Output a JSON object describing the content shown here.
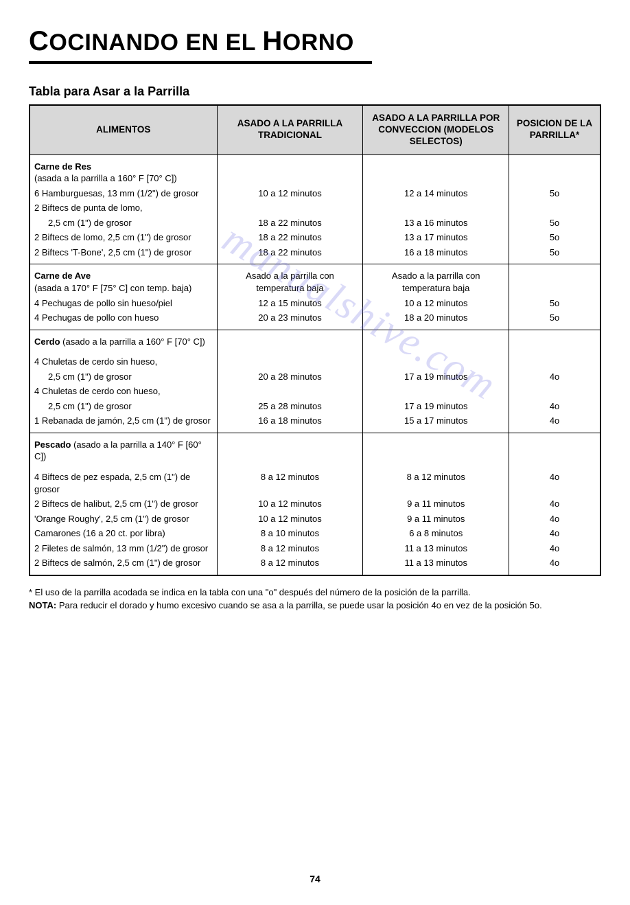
{
  "title": {
    "part1": "C",
    "part2": "OCINANDO EN EL ",
    "part3": "H",
    "part4": "ORNO"
  },
  "subtitle": "Tabla para Asar a la Parrilla",
  "columns": {
    "c1": "ALIMENTOS",
    "c2": "ASADO A LA PARRILLA TRADICIONAL",
    "c3": "ASADO A LA PARRILLA POR CONVECCION (MODELOS SELECTOS)",
    "c4": "POSICION DE LA PARRILLA*"
  },
  "sections": [
    {
      "header": "Carne de Res",
      "subheader": "(asada a la parrilla a 160° F [70° C])",
      "header_c2": "",
      "header_c3": "",
      "rows": [
        {
          "food": "6 Hamburguesas, 13 mm (1/2\")  de grosor",
          "c2": "10 a 12 minutos",
          "c3": "12 a 14 minutos",
          "c4": "5o"
        },
        {
          "food": "2 Biftecs de punta de lomo,",
          "cont": "2,5 cm (1\") de grosor",
          "c2": "18 a 22 minutos",
          "c3": "13 a 16 minutos",
          "c4": "5o"
        },
        {
          "food": "2 Biftecs de lomo, 2,5 cm (1\") de grosor",
          "c2": "18 a 22 minutos",
          "c3": "13 a 17 minutos",
          "c4": "5o"
        },
        {
          "food": "2 Biftecs 'T-Bone', 2,5 cm (1\") de grosor",
          "c2": "18 a 22 minutos",
          "c3": "16 a 18 minutos",
          "c4": "5o"
        }
      ]
    },
    {
      "header": "Carne de Ave",
      "subheader": "(asada a 170° F [75° C] con temp. baja)",
      "header_c2": "Asado a la parrilla con temperatura baja",
      "header_c3": "Asado a la parrilla con temperatura baja",
      "rows": [
        {
          "food": "4 Pechugas de pollo sin hueso/piel",
          "c2": "12 a 15 minutos",
          "c3": "10 a 12 minutos",
          "c4": "5o"
        },
        {
          "food": "4 Pechugas de pollo con hueso",
          "c2": "20 a 23 minutos",
          "c3": "18 a 20 minutos",
          "c4": "5o"
        }
      ]
    },
    {
      "header_inline": "Cerdo",
      "subheader_inline": " (asado a la parrilla a 160° F [70° C])",
      "rows": [
        {
          "food": "4 Chuletas de cerdo sin hueso,",
          "cont": "2,5 cm (1\") de grosor",
          "c2": "20 a 28 minutos",
          "c3": "17 a 19 minutos",
          "c4": "4o"
        },
        {
          "food": "4 Chuletas de cerdo con hueso,",
          "cont": "2,5 cm (1\") de grosor",
          "c2": "25 a 28 minutos",
          "c3": "17 a 19 minutos",
          "c4": "4o"
        },
        {
          "food": "1 Rebanada de jamón, 2,5 cm (1\") de grosor",
          "c2": "16 a 18 minutos",
          "c3": "15 a 17 minutos",
          "c4": "4o"
        }
      ]
    },
    {
      "header_inline": "Pescado",
      "subheader_inline": " (asado a la parrilla a 140° F [60° C])",
      "rows": [
        {
          "food": "4 Biftecs de pez espada, 2,5 cm (1\") de grosor",
          "c2": "8 a 12 minutos",
          "c3": "8 a 12 minutos",
          "c4": "4o"
        },
        {
          "food": "2 Biftecs de halibut, 2,5 cm (1\") de grosor",
          "c2": "10 a 12 minutos",
          "c3": "9 a 11 minutos",
          "c4": "4o"
        },
        {
          "food": "'Orange Roughy', 2,5 cm (1\") de grosor",
          "c2": "10 a 12 minutos",
          "c3": "9 a 11 minutos",
          "c4": "4o"
        },
        {
          "food": "Camarones (16 a 20 ct. por libra)",
          "c2": "8 a 10 minutos",
          "c3": "6 a 8 minutos",
          "c4": "4o"
        },
        {
          "food": "2 Filetes de salmón, 13 mm (1/2\") de grosor",
          "c2": "8 a 12 minutos",
          "c3": "11 a 13 minutos",
          "c4": "4o"
        },
        {
          "food": "2 Biftecs de salmón, 2,5 cm (1\") de grosor",
          "c2": "8 a 12 minutos",
          "c3": "11 a 13 minutos",
          "c4": "4o"
        }
      ]
    }
  ],
  "footnote1": "* El uso de la parrilla acodada se indica en la tabla con una \"o\" después del número de la posición de la parrilla.",
  "footnote2_bold": "NOTA:",
  "footnote2_rest": " Para reducir el dorado y humo excesivo cuando se asa a la parrilla, se puede usar la posición 4o en vez de la posición 5o.",
  "page_number": "74",
  "watermark": "manualshive.com"
}
